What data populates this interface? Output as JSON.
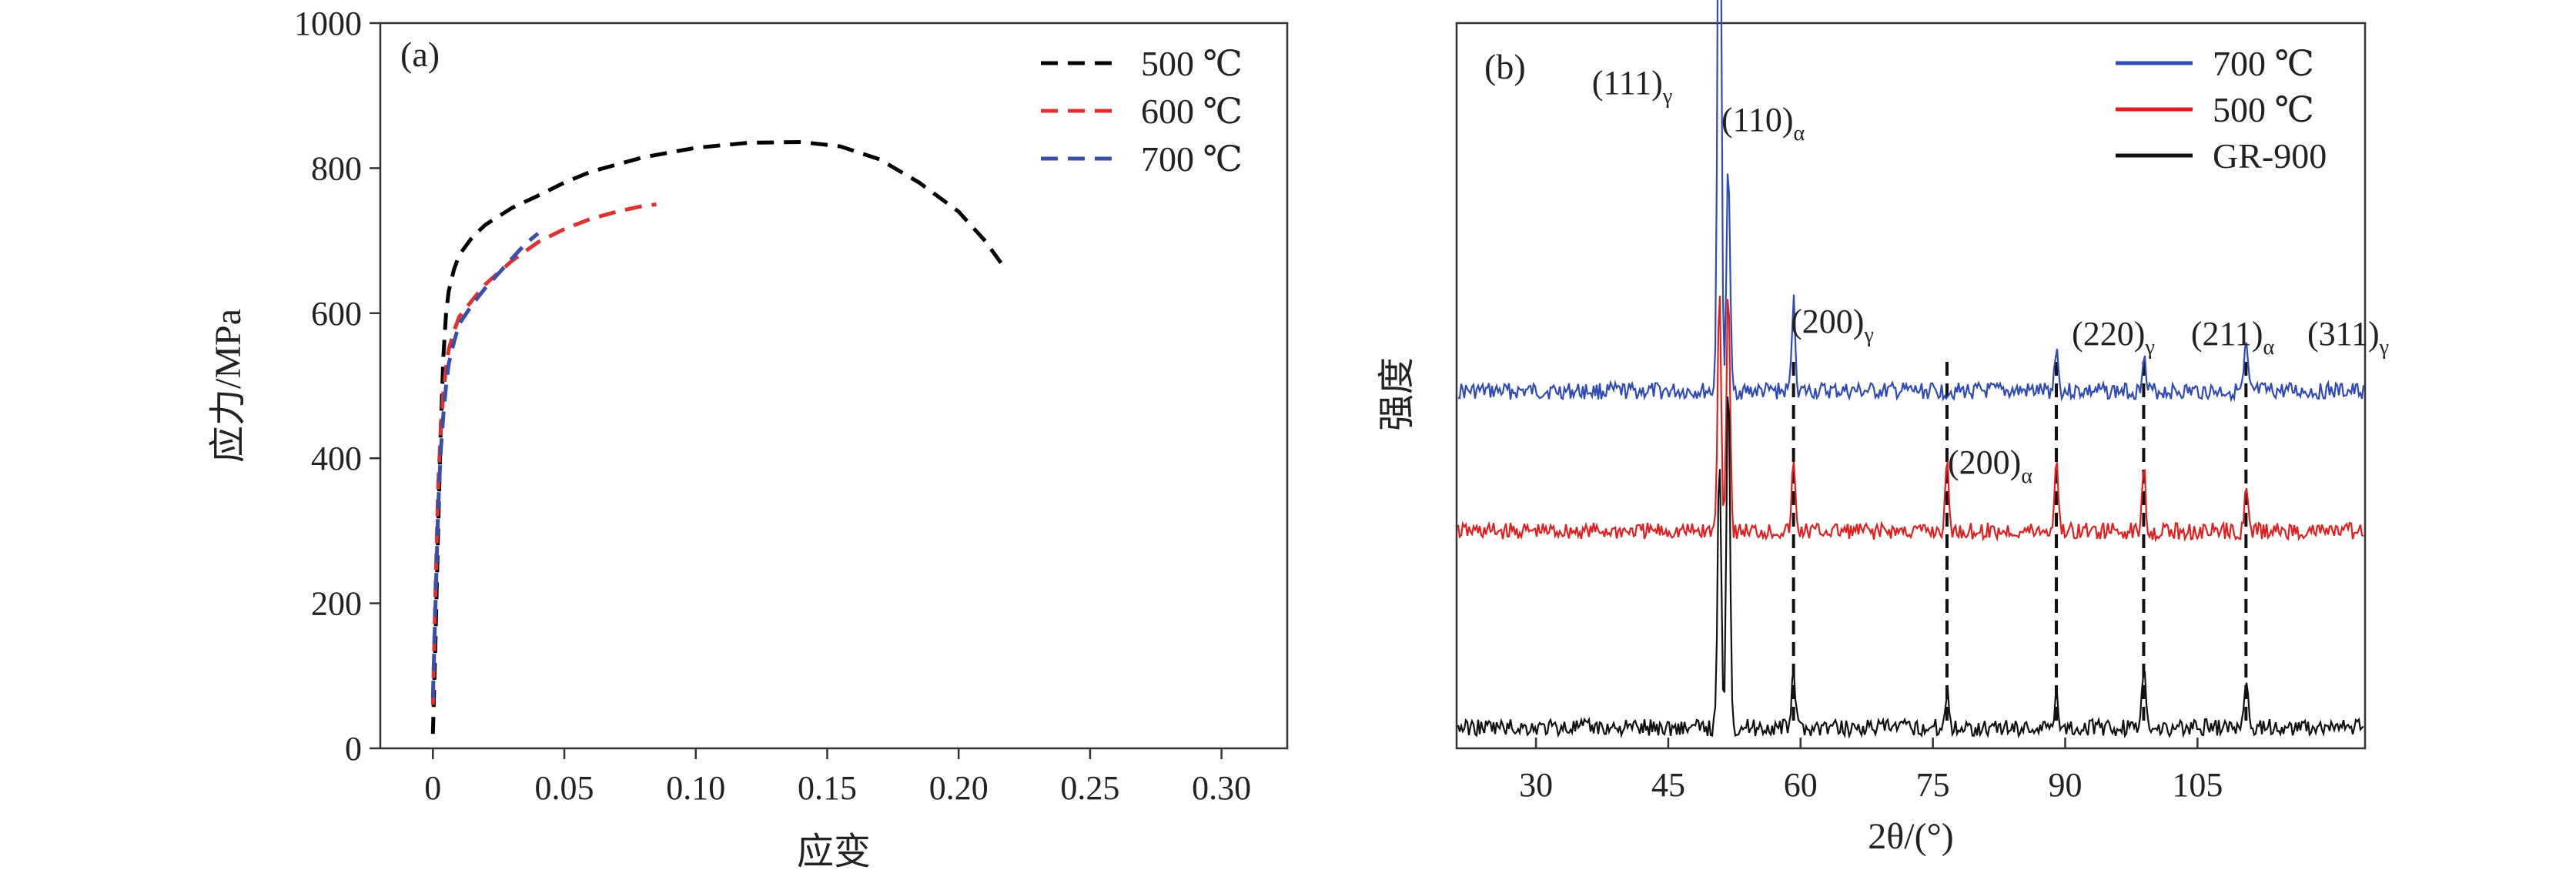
{
  "chart_data": [
    {
      "type": "line",
      "panel_label": "(a)",
      "xlabel": "应变",
      "ylabel": "应力/MPa",
      "xlim": [
        -0.02,
        0.325
      ],
      "ylim": [
        0,
        1000
      ],
      "xticks": [
        0,
        0.05,
        0.1,
        0.15,
        0.2,
        0.25,
        0.3
      ],
      "xtick_labels": [
        "0",
        "0.05",
        "0.10",
        "0.15",
        "0.20",
        "0.25",
        "0.30"
      ],
      "yticks": [
        0,
        200,
        400,
        600,
        800,
        1000
      ],
      "ytick_labels": [
        "0",
        "200",
        "400",
        "600",
        "800",
        "1000"
      ],
      "grid": false,
      "legend_position": "top-right",
      "series": [
        {
          "name": "500 ℃",
          "color": "#000000",
          "style": "dashed",
          "x": [
            0.0,
            0.001,
            0.002,
            0.003,
            0.004,
            0.005,
            0.006,
            0.008,
            0.01,
            0.015,
            0.02,
            0.03,
            0.04,
            0.05,
            0.06,
            0.08,
            0.1,
            0.12,
            0.14,
            0.155,
            0.17,
            0.185,
            0.2,
            0.21,
            0.217
          ],
          "y": [
            20,
            150,
            300,
            440,
            540,
            600,
            630,
            660,
            680,
            705,
            722,
            745,
            762,
            780,
            795,
            815,
            828,
            835,
            836,
            830,
            812,
            780,
            740,
            700,
            665
          ]
        },
        {
          "name": "600 ℃",
          "color": "#e03030",
          "style": "dashed",
          "x": [
            0.0,
            0.001,
            0.002,
            0.003,
            0.004,
            0.005,
            0.006,
            0.008,
            0.01,
            0.015,
            0.02,
            0.03,
            0.04,
            0.05,
            0.06,
            0.07,
            0.08,
            0.085
          ],
          "y": [
            60,
            220,
            360,
            440,
            490,
            525,
            550,
            575,
            595,
            618,
            640,
            672,
            698,
            716,
            730,
            740,
            748,
            750
          ]
        },
        {
          "name": "700 ℃",
          "color": "#3a4fa8",
          "style": "dashed",
          "x": [
            0.0,
            0.001,
            0.002,
            0.003,
            0.004,
            0.005,
            0.006,
            0.008,
            0.01,
            0.015,
            0.02,
            0.025,
            0.03,
            0.035,
            0.04
          ],
          "y": [
            70,
            200,
            330,
            410,
            460,
            500,
            530,
            560,
            585,
            612,
            635,
            655,
            675,
            695,
            710
          ]
        }
      ]
    },
    {
      "type": "line",
      "panel_label": "(b)",
      "xlabel": "2θ/(°)",
      "ylabel": "强度",
      "xlim": [
        21,
        124
      ],
      "xticks": [
        30,
        45,
        60,
        75,
        90,
        105
      ],
      "xtick_labels": [
        "30",
        "45",
        "60",
        "75",
        "90",
        "105"
      ],
      "grid": false,
      "legend_position": "top-right",
      "series": [
        {
          "name": "700 ℃",
          "color": "#2f4bb4",
          "peaks": [
            {
              "x": 50.8,
              "h": 92
            },
            {
              "x": 51.8,
              "h": 30
            },
            {
              "x": 59.2,
              "h": 12
            },
            {
              "x": 89.0,
              "h": 6
            },
            {
              "x": 98.9,
              "h": 5
            },
            {
              "x": 110.5,
              "h": 6
            }
          ]
        },
        {
          "name": "500 ℃",
          "color": "#e02020",
          "peaks": [
            {
              "x": 50.8,
              "h": 32
            },
            {
              "x": 51.8,
              "h": 33
            },
            {
              "x": 59.2,
              "h": 9
            },
            {
              "x": 76.6,
              "h": 9
            },
            {
              "x": 89.0,
              "h": 10
            },
            {
              "x": 98.9,
              "h": 9
            },
            {
              "x": 110.5,
              "h": 6
            }
          ]
        },
        {
          "name": "GR-900",
          "color": "#111111",
          "peaks": [
            {
              "x": 50.8,
              "h": 36
            },
            {
              "x": 51.8,
              "h": 48
            },
            {
              "x": 59.2,
              "h": 8
            },
            {
              "x": 76.6,
              "h": 5
            },
            {
              "x": 89.0,
              "h": 5
            },
            {
              "x": 98.9,
              "h": 8
            },
            {
              "x": 110.5,
              "h": 7
            }
          ]
        }
      ],
      "reference_lines_x": [
        59.2,
        76.6,
        89.0,
        98.9,
        110.5
      ],
      "peak_labels": [
        {
          "text": "(111)",
          "sub": "γ",
          "x": 50.8
        },
        {
          "text": "(110)",
          "sub": "α",
          "x": 51.8
        },
        {
          "text": "(200)",
          "sub": "γ",
          "x": 59.2
        },
        {
          "text": "(200)",
          "sub": "α",
          "x": 76.6
        },
        {
          "text": "(220)",
          "sub": "γ",
          "x": 89.0
        },
        {
          "text": "(211)",
          "sub": "α",
          "x": 98.9
        },
        {
          "text": "(311)",
          "sub": "γ",
          "x": 110.5
        }
      ]
    }
  ]
}
